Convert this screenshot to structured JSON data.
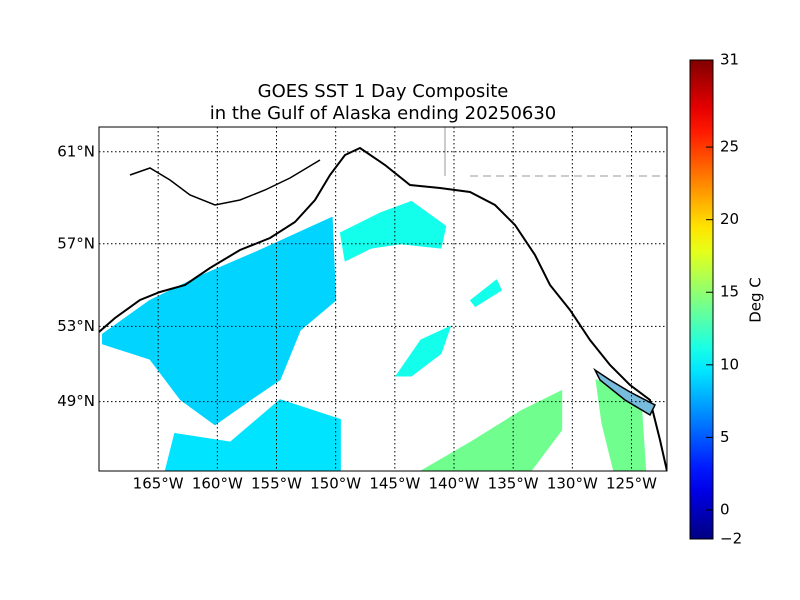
{
  "chart_data": {
    "type": "map",
    "title": [
      "GOES SST 1 Day Composite",
      "in the Gulf of Alaska ending 20250630"
    ],
    "xlim": [
      -170,
      -122
    ],
    "ylim": [
      45,
      62
    ],
    "xticks": [
      {
        "value": -165,
        "label": "165°W"
      },
      {
        "value": -160,
        "label": "160°W"
      },
      {
        "value": -155,
        "label": "155°W"
      },
      {
        "value": -150,
        "label": "150°W"
      },
      {
        "value": -145,
        "label": "145°W"
      },
      {
        "value": -140,
        "label": "140°W"
      },
      {
        "value": -135,
        "label": "135°W"
      },
      {
        "value": -130,
        "label": "130°W"
      },
      {
        "value": -125,
        "label": "125°W"
      }
    ],
    "yticks": [
      {
        "value": 61,
        "label": "61°N"
      },
      {
        "value": 57,
        "label": "57°N"
      },
      {
        "value": 53,
        "label": "53°N"
      },
      {
        "value": 49,
        "label": "49°N"
      }
    ],
    "grid": true,
    "colorbar": {
      "label": "Deg C",
      "lim": [
        -2,
        31
      ],
      "colormap": "jet",
      "ticks": [
        {
          "value": -2,
          "label": "−2"
        },
        0,
        5,
        10,
        15,
        20,
        25,
        31
      ]
    },
    "regions": [
      {
        "value": 9,
        "lon": [
          -169.7,
          -165.7,
          -161.4,
          -156.4,
          -150.3,
          -150.0,
          -153.0,
          -154.7,
          -157.2,
          -160.2,
          -163.1,
          -165.7,
          -169.7
        ],
        "lat": [
          52.6,
          54.3,
          55.5,
          56.7,
          58.2,
          54.3,
          52.8,
          50.2,
          49.1,
          47.7,
          49.1,
          51.3,
          52.1
        ]
      },
      {
        "value": 9.5,
        "lon": [
          -164.4,
          -163.6,
          -158.9,
          -154.7,
          -149.6,
          -149.6
        ],
        "lat": [
          45,
          47.2,
          46.7,
          49.1,
          48.0,
          45
        ]
      },
      {
        "value": 11,
        "lon": [
          -149.6,
          -146.2,
          -143.6,
          -140.7,
          -141.1,
          -144.5,
          -147.0,
          -149.2
        ],
        "lat": [
          57.5,
          58.4,
          58.9,
          57.8,
          56.8,
          57.0,
          56.8,
          56.2
        ]
      },
      {
        "value": 11,
        "lon": [
          -144.9,
          -142.8,
          -140.3,
          -141.1,
          -143.6
        ],
        "lat": [
          50.4,
          52.3,
          53.0,
          51.6,
          50.4
        ]
      },
      {
        "value": 11,
        "lon": [
          -138.6,
          -136.4,
          -136.0,
          -138.2
        ],
        "lat": [
          54.3,
          55.3,
          54.8,
          54.0
        ]
      },
      {
        "value": 14,
        "lon": [
          -142.8,
          -138.6,
          -134.3,
          -130.9,
          -130.9,
          -133.5
        ],
        "lat": [
          45,
          46.7,
          48.5,
          49.6,
          47.4,
          45
        ]
      },
      {
        "value": 14,
        "lon": [
          -128.0,
          -124.2,
          -123.8,
          -126.5,
          -127.5
        ],
        "lat": [
          50.2,
          49.1,
          45,
          45,
          47.8
        ]
      }
    ]
  }
}
